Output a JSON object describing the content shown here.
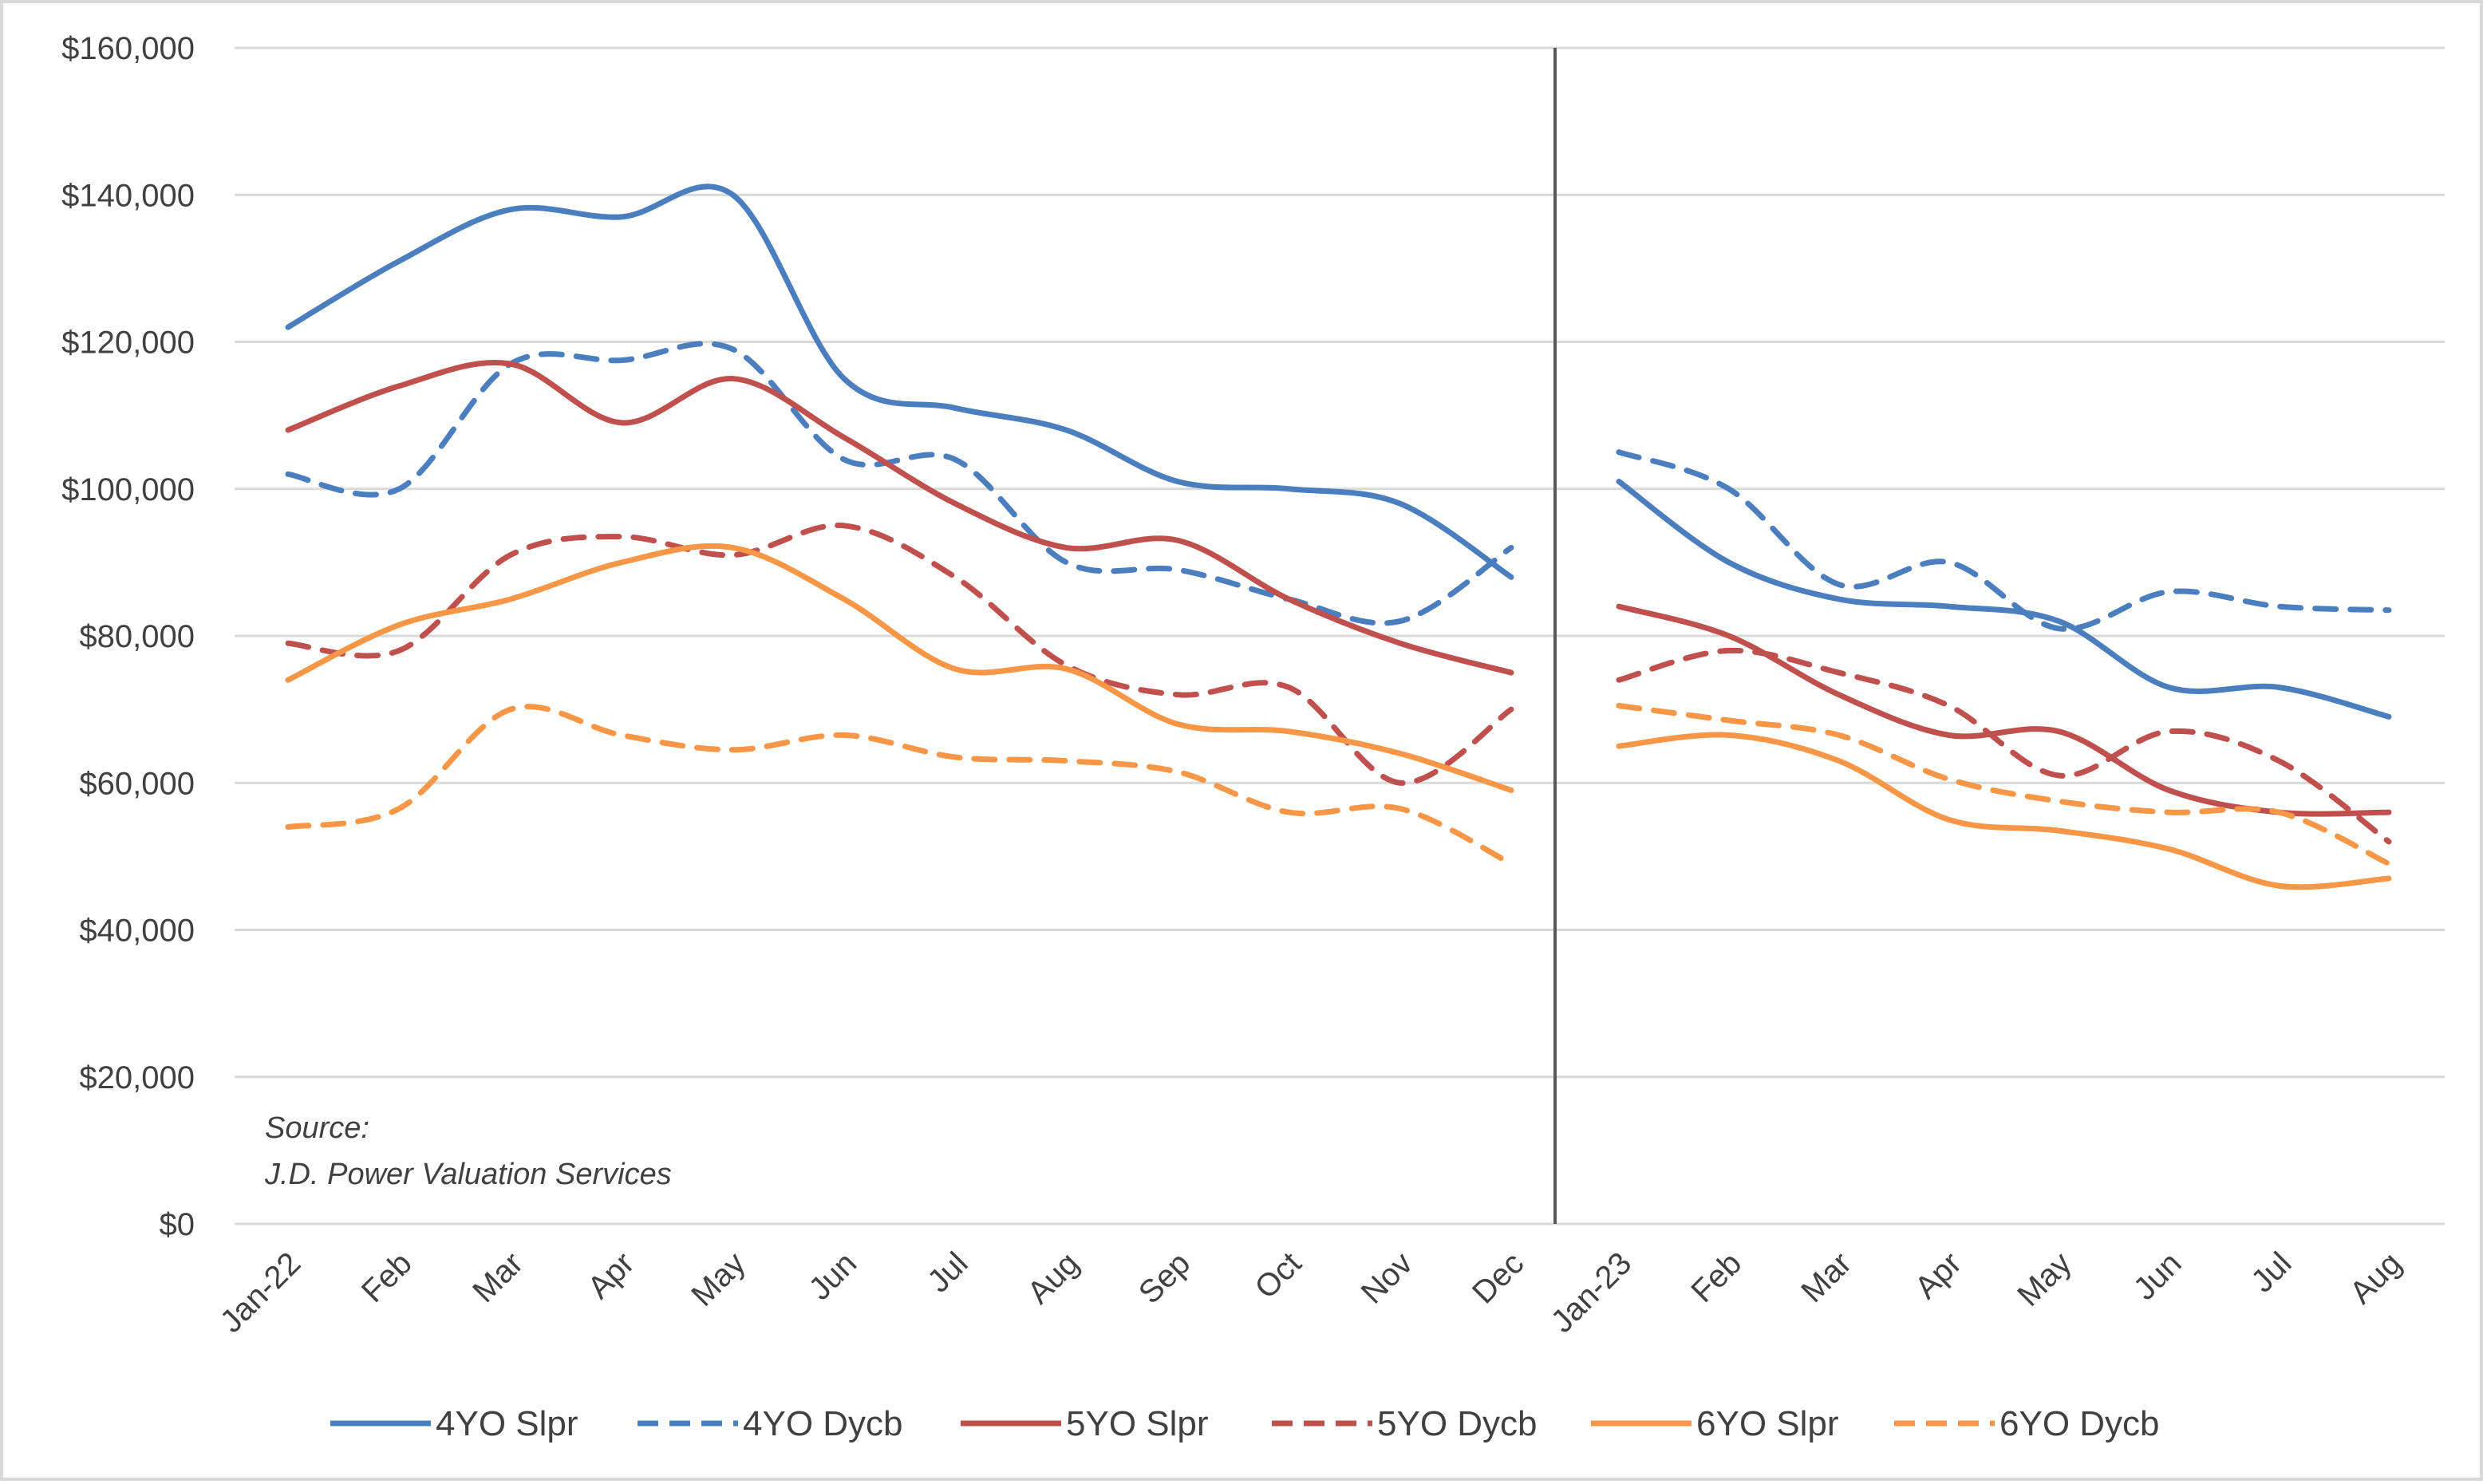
{
  "chart_data": {
    "type": "line",
    "title": "",
    "xlabel": "",
    "ylabel": "",
    "categories": [
      "Jan-22",
      "Feb",
      "Mar",
      "Apr",
      "May",
      "Jun",
      "Jul",
      "Aug",
      "Sep",
      "Oct",
      "Nov",
      "Dec",
      "Jan-23",
      "Feb",
      "Mar",
      "Apr",
      "May",
      "Jun",
      "Jul",
      "Aug"
    ],
    "ylim": [
      0,
      160000
    ],
    "yticks": [
      0,
      20000,
      40000,
      60000,
      80000,
      100000,
      120000,
      140000,
      160000
    ],
    "ytick_labels": [
      "$0",
      "$20,000",
      "$40,000",
      "$60,000",
      "$80,000",
      "$100,000",
      "$120,000",
      "$140,000",
      "$160,000"
    ],
    "grid": "horizontal",
    "legend_position": "bottom",
    "gap_between": [
      "Dec",
      "Jan-23"
    ],
    "annotation": {
      "line1": "Source:",
      "line2": "J.D. Power Valuation Services"
    },
    "series": [
      {
        "name": "4YO Slpr",
        "color": "#4a7ebf",
        "style": "solid",
        "values": [
          122000,
          131000,
          138000,
          137000,
          140000,
          115000,
          111000,
          108000,
          101000,
          100000,
          98000,
          88000,
          101000,
          90000,
          85000,
          84000,
          82000,
          73000,
          73000,
          69000
        ]
      },
      {
        "name": "4YO Dycb",
        "color": "#4a7ebf",
        "style": "dashed",
        "values": [
          102000,
          100000,
          117000,
          117500,
          119000,
          104000,
          104000,
          90000,
          89000,
          85000,
          82000,
          92000,
          105000,
          100000,
          87000,
          90000,
          81000,
          86000,
          84000,
          83500
        ]
      },
      {
        "name": "5YO Slpr",
        "color": "#c0504d",
        "style": "solid",
        "values": [
          108000,
          114000,
          117000,
          109000,
          115000,
          107000,
          98000,
          92000,
          93000,
          85000,
          79000,
          75000,
          84000,
          80000,
          72000,
          66500,
          67000,
          59000,
          56000,
          56000
        ]
      },
      {
        "name": "5YO Dycb",
        "color": "#c0504d",
        "style": "dashed",
        "values": [
          79000,
          78000,
          91000,
          93500,
          91000,
          95000,
          88000,
          76000,
          72000,
          73000,
          60000,
          70000,
          74000,
          78000,
          75000,
          70500,
          61000,
          67000,
          63000,
          52000
        ]
      },
      {
        "name": "6YO Slpr",
        "color": "#f79646",
        "style": "solid",
        "values": [
          74000,
          81500,
          85000,
          90000,
          92000,
          85000,
          75500,
          75500,
          68000,
          67000,
          64000,
          59000,
          65000,
          66500,
          63000,
          55000,
          53500,
          51000,
          46000,
          47000
        ]
      },
      {
        "name": "6YO Dycb",
        "color": "#f79646",
        "style": "dashed",
        "values": [
          54000,
          56500,
          70000,
          66500,
          64500,
          66500,
          63500,
          63000,
          61500,
          56000,
          56500,
          49000,
          70500,
          68500,
          66500,
          60500,
          57500,
          56000,
          56000,
          49000
        ]
      }
    ]
  }
}
